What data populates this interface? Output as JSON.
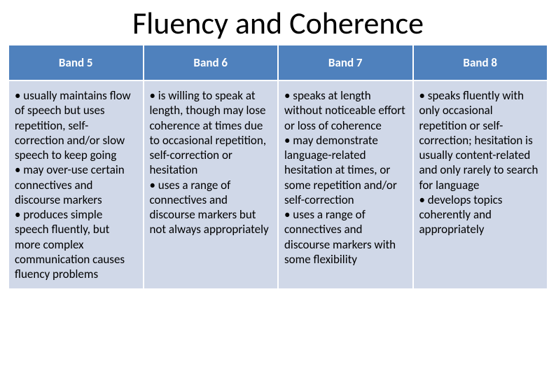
{
  "title": "Fluency and Coherence",
  "colors": {
    "header_bg": "#4f81bd",
    "header_text": "#ffffff",
    "body_bg": "#d0d8e8",
    "body_text": "#000000",
    "border": "#ffffff"
  },
  "typography": {
    "title_fontsize": 44,
    "header_fontsize": 17,
    "body_fontsize": 17,
    "font_family": "Calibri, Arial, sans-serif"
  },
  "table": {
    "columns": [
      {
        "header": "Band 5",
        "bullets": [
          "usually maintains flow of speech but uses repetition, self-correction and/or slow speech to keep going",
          "may over-use certain connectives and discourse markers",
          "produces simple speech fluently, but more complex communication causes fluency problems"
        ]
      },
      {
        "header": "Band 6",
        "bullets": [
          "is willing to speak at length, though may lose coherence at times due to occasional repetition, self-correction or hesitation",
          "uses a range of connectives and discourse markers but not always appropriately"
        ]
      },
      {
        "header": "Band 7",
        "bullets": [
          "speaks at length without noticeable effort or loss of coherence",
          "may demonstrate language-related hesitation at times, or some repetition and/or self-correction",
          "uses a range of connectives and discourse markers with some flexibility"
        ]
      },
      {
        "header": "Band 8",
        "bullets": [
          "speaks fluently with only occasional repetition or self-correction; hesitation is usually content-related and only rarely to search for language",
          "develops topics coherently and appropriately"
        ]
      }
    ]
  }
}
